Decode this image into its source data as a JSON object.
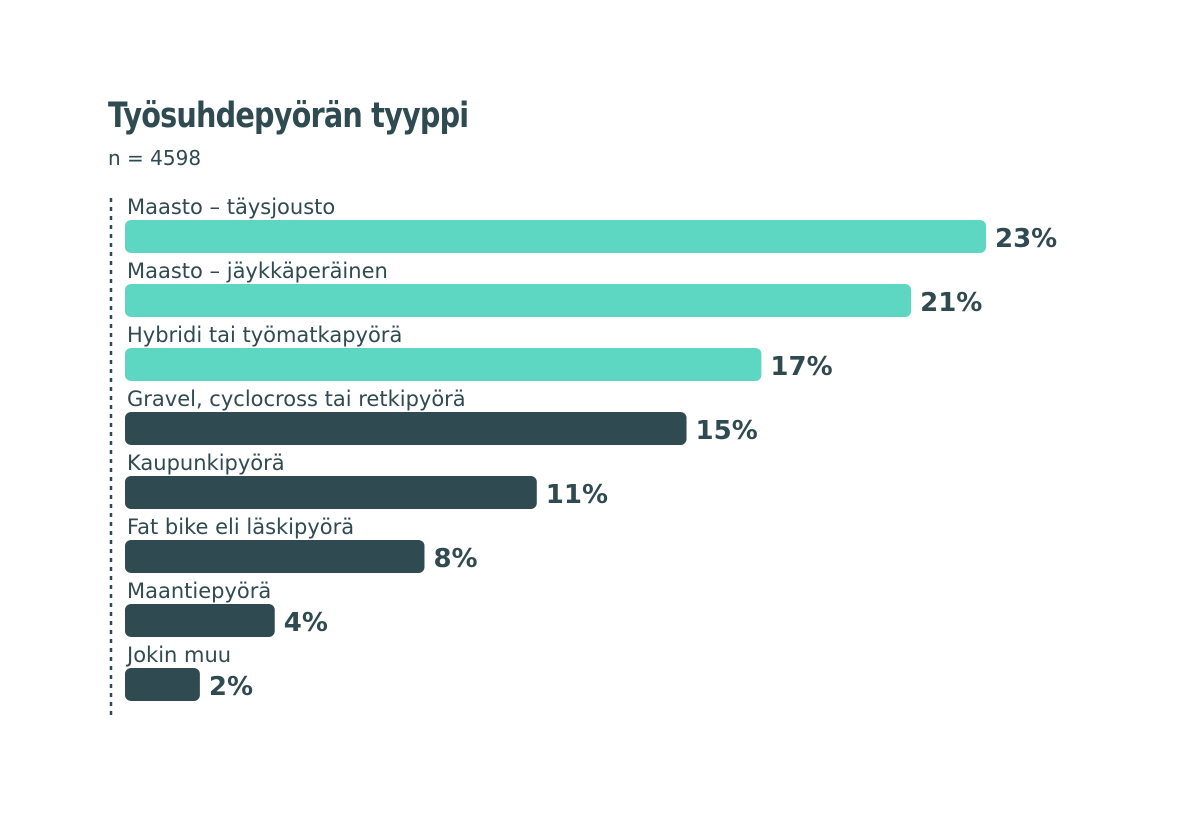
{
  "header": {
    "title": "Työsuhdepyörän tyyppi",
    "subtitle": "n = 4598"
  },
  "colors": {
    "highlight": "#5dd6c2",
    "base": "#2f4a51",
    "text": "#2f4a51",
    "axis": "#2f4a51"
  },
  "chart_data": {
    "type": "bar",
    "orientation": "horizontal",
    "title": "Työsuhdepyörän tyyppi",
    "subtitle": "n = 4598",
    "categories": [
      "Maasto – täysjousto",
      "Maasto – jäykkäperäinen",
      "Hybridi tai työmatkapyörä",
      "Gravel, cyclocross tai retkipyörä",
      "Kaupunkipyörä",
      "Fat bike eli läskipyörä",
      "Maantiepyörä",
      "Jokin muu"
    ],
    "values": [
      23,
      21,
      17,
      15,
      11,
      8,
      4,
      2
    ],
    "value_labels": [
      "23%",
      "21%",
      "17%",
      "15%",
      "11%",
      "8%",
      "4%",
      "2%"
    ],
    "unit": "%",
    "highlighted": [
      true,
      true,
      true,
      false,
      false,
      false,
      false,
      false
    ],
    "xlim": [
      0,
      23
    ],
    "grid": false,
    "legend": "none"
  }
}
